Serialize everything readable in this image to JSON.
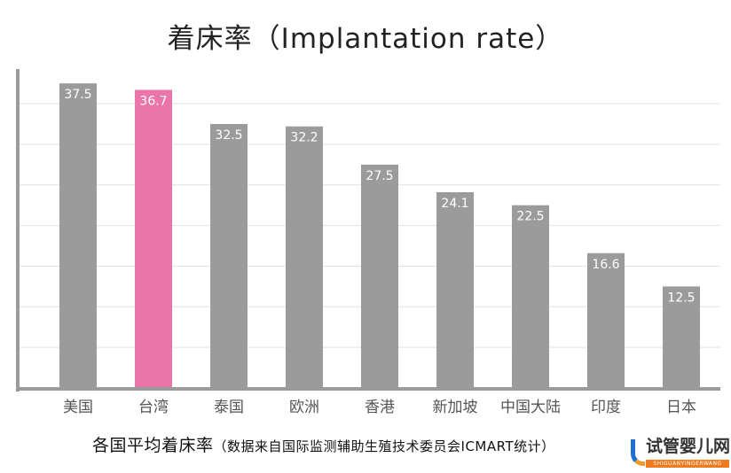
{
  "chart_data": {
    "type": "bar",
    "title": "着床率（Implantation rate）",
    "categories": [
      "美国",
      "台湾",
      "泰国",
      "欧洲",
      "香港",
      "新加坡",
      "中国大陆",
      "印度",
      "日本"
    ],
    "values": [
      37.5,
      36.7,
      32.5,
      32.2,
      27.5,
      24.1,
      22.5,
      16.6,
      12.5
    ],
    "value_labels": [
      "37.5",
      "36.7",
      "32.5",
      "32.2",
      "27.5",
      "24.1",
      "22.5",
      "16.6",
      "12.5"
    ],
    "highlight_category": "台湾",
    "ylim": [
      0,
      39
    ],
    "grid_step": 5,
    "grid": true,
    "y_tick_labels_shown": false,
    "colors": {
      "bar": "#9b9b9b",
      "highlight": "#ea75a8",
      "grid": "#e2e2e2",
      "axis": "#9b9b9b",
      "value_label": "#ffffff"
    }
  },
  "caption": {
    "main": "各国平均着床率",
    "sub": "（数据来自国际监测辅助生殖技术委员会ICMART统计）"
  },
  "watermark": {
    "text": "试管婴儿网",
    "subtext": "SHIGUANYINGERWANG"
  }
}
